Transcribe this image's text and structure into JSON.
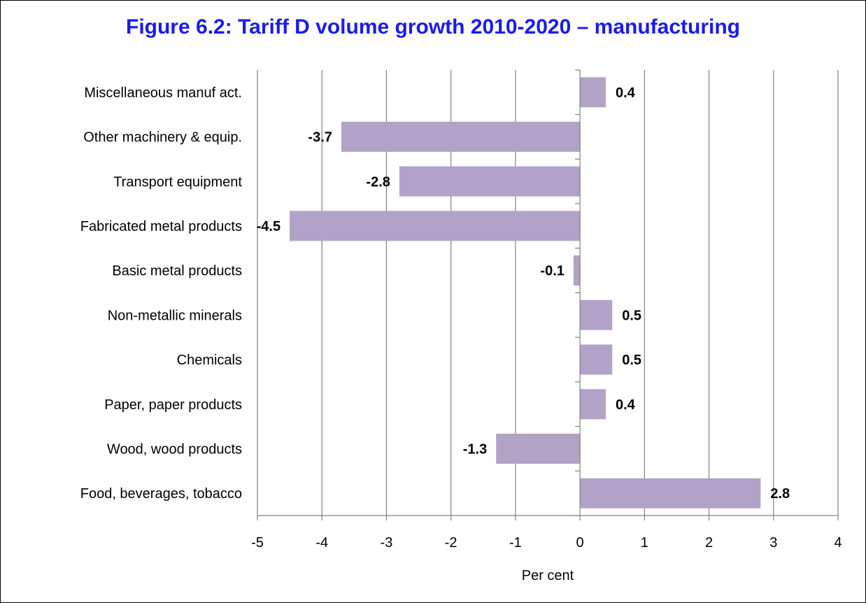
{
  "chart_data": {
    "type": "bar",
    "orientation": "horizontal",
    "title": "Figure 6.2:  Tariff D volume growth 2010-2020 – manufacturing",
    "xlabel": "Per cent",
    "ylabel": "",
    "xlim": [
      -5,
      4
    ],
    "xticks": [
      "-5",
      "-4",
      "-3",
      "-2",
      "-1",
      "0",
      "1",
      "2",
      "3",
      "4"
    ],
    "grid": "vertical",
    "legend": "none",
    "bar_color": "#b3a2c7",
    "title_color": "#1a1af0",
    "categories": [
      "Miscellaneous manuf act.",
      "Other machinery & equip.",
      "Transport equipment",
      "Fabricated metal products",
      "Basic metal products",
      "Non-metallic minerals",
      "Chemicals",
      "Paper, paper products",
      "Wood, wood products",
      "Food, beverages, tobacco"
    ],
    "values": [
      0.4,
      -3.7,
      -2.8,
      -4.5,
      -0.1,
      0.5,
      0.5,
      0.4,
      -1.3,
      2.8
    ],
    "value_labels": [
      "0.4",
      "-3.7",
      "-2.8",
      "-4.5",
      "-0.1",
      "0.5",
      "0.5",
      "0.4",
      "-1.3",
      "2.8"
    ]
  }
}
